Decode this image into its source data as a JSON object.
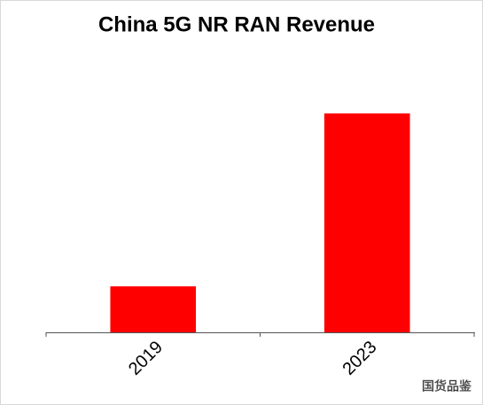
{
  "chart_data": {
    "type": "bar",
    "title": "China 5G NR RAN Revenue",
    "categories": [
      "2019",
      "2023"
    ],
    "values": [
      1.05,
      5
    ],
    "color": "#ff0000",
    "ylim": [
      0,
      5
    ]
  },
  "watermark": "国货品鉴"
}
